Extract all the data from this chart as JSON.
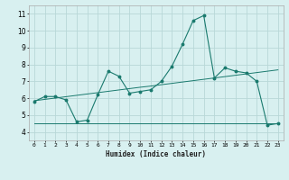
{
  "title": "",
  "xlabel": "Humidex (Indice chaleur)",
  "x_values": [
    0,
    1,
    2,
    3,
    4,
    5,
    6,
    7,
    8,
    9,
    10,
    11,
    12,
    13,
    14,
    15,
    16,
    17,
    18,
    19,
    20,
    21,
    22,
    23
  ],
  "line1": [
    5.8,
    6.1,
    6.1,
    5.9,
    4.6,
    4.7,
    6.2,
    7.6,
    7.3,
    6.3,
    6.4,
    6.5,
    7.0,
    7.9,
    9.2,
    10.6,
    10.9,
    7.2,
    7.8,
    7.6,
    7.5,
    7.0,
    4.4,
    4.5
  ],
  "line2": [
    5.85,
    5.93,
    6.01,
    6.09,
    6.17,
    6.25,
    6.33,
    6.41,
    6.49,
    6.57,
    6.65,
    6.72,
    6.8,
    6.88,
    6.96,
    7.04,
    7.12,
    7.2,
    7.28,
    7.36,
    7.44,
    7.52,
    7.6,
    7.68
  ],
  "line3": [
    4.5,
    4.5,
    4.5,
    4.5,
    4.5,
    4.5,
    4.5,
    4.5,
    4.5,
    4.5,
    4.5,
    4.5,
    4.5,
    4.5,
    4.5,
    4.5,
    4.5,
    4.5,
    4.5,
    4.5,
    4.5,
    4.5,
    4.5,
    4.5
  ],
  "line_color": "#1a7a6e",
  "bg_color": "#d8f0f0",
  "grid_color": "#b8d8d8",
  "ylim": [
    3.5,
    11.5
  ],
  "yticks": [
    4,
    5,
    6,
    7,
    8,
    9,
    10,
    11
  ],
  "xlim": [
    -0.5,
    23.5
  ]
}
